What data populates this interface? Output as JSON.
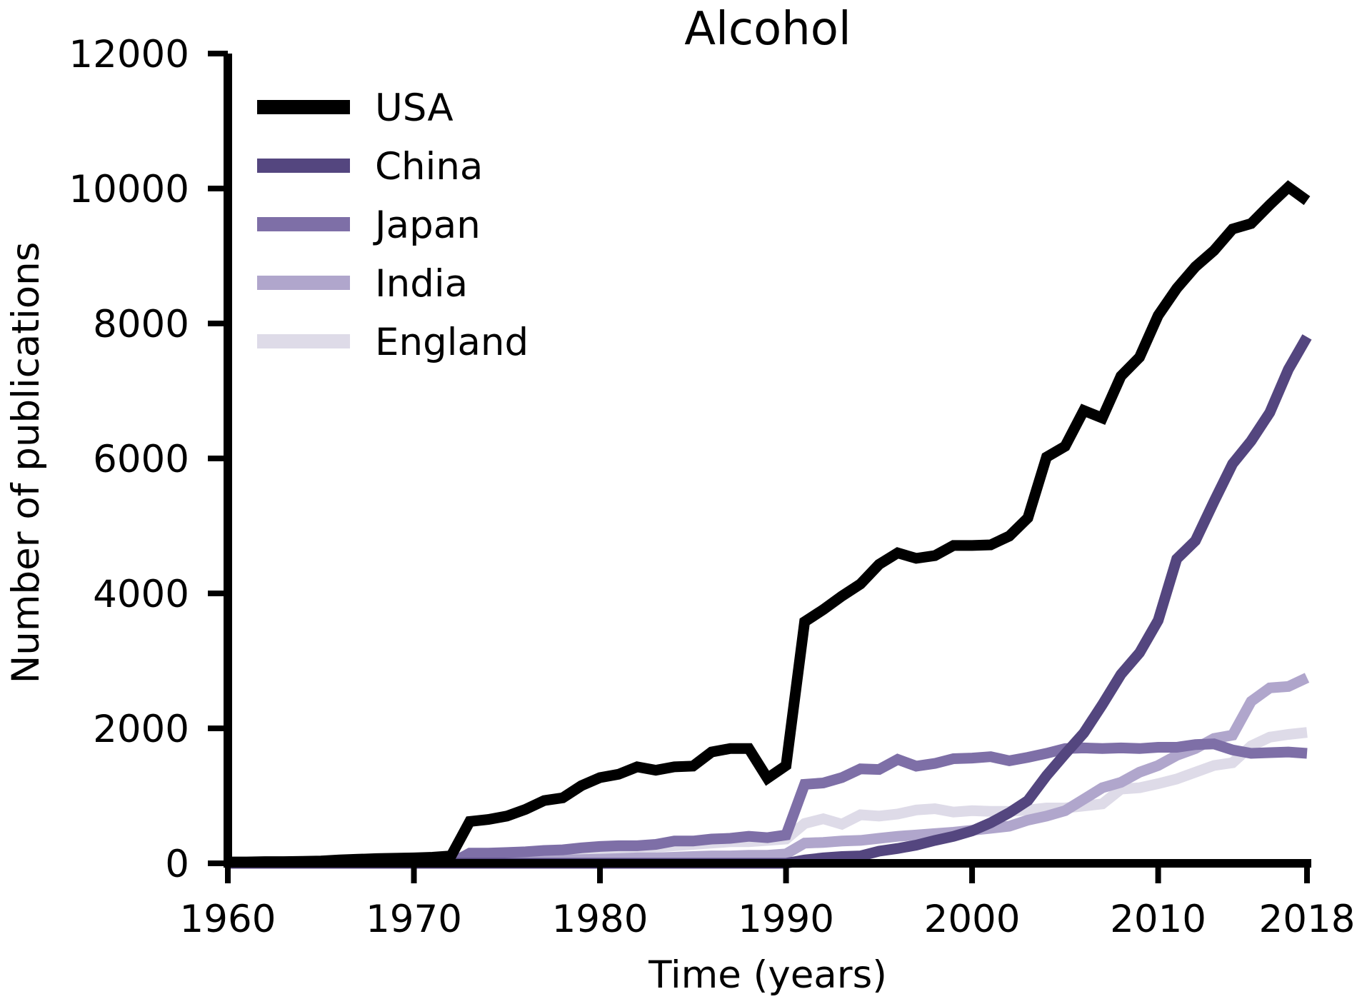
{
  "chart_data": {
    "type": "line",
    "title": "Alcohol",
    "xlabel": "Time (years)",
    "ylabel": "Number of publications",
    "xlim": [
      1960,
      2018
    ],
    "ylim": [
      0,
      12000
    ],
    "xticks": [
      1960,
      1970,
      1980,
      1990,
      2000,
      2010,
      2018
    ],
    "yticks": [
      0,
      2000,
      4000,
      6000,
      8000,
      10000,
      12000
    ],
    "xtick_labels": [
      "1960",
      "1970",
      "1980",
      "1990",
      "2000",
      "2010",
      "2018"
    ],
    "ytick_labels": [
      "0",
      "2000",
      "4000",
      "6000",
      "8000",
      "10000",
      "12000"
    ],
    "grid": false,
    "legend_position": "top-left",
    "x": [
      1960,
      1961,
      1962,
      1963,
      1964,
      1965,
      1966,
      1967,
      1968,
      1969,
      1970,
      1971,
      1972,
      1973,
      1974,
      1975,
      1976,
      1977,
      1978,
      1979,
      1980,
      1981,
      1982,
      1983,
      1984,
      1985,
      1986,
      1987,
      1988,
      1989,
      1990,
      1991,
      1992,
      1993,
      1994,
      1995,
      1996,
      1997,
      1998,
      1999,
      2000,
      2001,
      2002,
      2003,
      2004,
      2005,
      2006,
      2007,
      2008,
      2009,
      2010,
      2011,
      2012,
      2013,
      2014,
      2015,
      2016,
      2017,
      2018
    ],
    "series": [
      {
        "name": "USA",
        "color": "#000000",
        "values": [
          20,
          20,
          25,
          25,
          30,
          35,
          50,
          60,
          70,
          75,
          80,
          90,
          110,
          620,
          650,
          700,
          800,
          930,
          970,
          1150,
          1270,
          1320,
          1430,
          1380,
          1430,
          1440,
          1650,
          1700,
          1700,
          1260,
          1450,
          3580,
          3760,
          3960,
          4140,
          4430,
          4600,
          4520,
          4560,
          4710,
          4710,
          4720,
          4850,
          5120,
          6020,
          6180,
          6710,
          6600,
          7220,
          7500,
          8120,
          8520,
          8840,
          9080,
          9400,
          9480,
          9760,
          10020,
          9820
        ]
      },
      {
        "name": "China",
        "color": "#54467f",
        "values": [
          0,
          0,
          0,
          0,
          0,
          0,
          0,
          0,
          0,
          0,
          0,
          0,
          0,
          0,
          0,
          0,
          0,
          0,
          0,
          0,
          0,
          0,
          0,
          0,
          0,
          0,
          0,
          0,
          0,
          0,
          0,
          50,
          80,
          100,
          110,
          180,
          220,
          270,
          340,
          400,
          480,
          600,
          750,
          930,
          1300,
          1620,
          1930,
          2350,
          2800,
          3120,
          3600,
          4510,
          4780,
          5360,
          5920,
          6260,
          6680,
          7320,
          7800
        ]
      },
      {
        "name": "Japan",
        "color": "#7e6fa7",
        "values": [
          0,
          0,
          0,
          0,
          0,
          0,
          0,
          0,
          0,
          0,
          0,
          0,
          0,
          150,
          150,
          160,
          170,
          190,
          200,
          230,
          250,
          260,
          260,
          280,
          330,
          330,
          360,
          370,
          400,
          380,
          420,
          1170,
          1190,
          1270,
          1400,
          1390,
          1540,
          1440,
          1480,
          1550,
          1560,
          1580,
          1520,
          1570,
          1630,
          1700,
          1710,
          1700,
          1710,
          1700,
          1720,
          1720,
          1760,
          1770,
          1680,
          1630,
          1640,
          1650,
          1630
        ]
      },
      {
        "name": "India",
        "color": "#b0a6cc",
        "values": [
          0,
          0,
          0,
          0,
          0,
          0,
          0,
          0,
          0,
          0,
          0,
          0,
          0,
          20,
          25,
          30,
          35,
          40,
          50,
          55,
          60,
          70,
          80,
          80,
          90,
          100,
          110,
          110,
          120,
          120,
          140,
          300,
          310,
          330,
          340,
          370,
          400,
          420,
          440,
          460,
          490,
          520,
          550,
          640,
          700,
          780,
          950,
          1120,
          1200,
          1350,
          1450,
          1600,
          1700,
          1850,
          1900,
          2400,
          2600,
          2620,
          2750
        ]
      },
      {
        "name": "England",
        "color": "#dedbe8",
        "values": [
          20,
          20,
          20,
          20,
          20,
          25,
          25,
          25,
          30,
          30,
          30,
          30,
          60,
          120,
          130,
          130,
          140,
          150,
          160,
          160,
          170,
          190,
          200,
          240,
          260,
          280,
          300,
          320,
          320,
          340,
          360,
          590,
          660,
          580,
          720,
          700,
          730,
          790,
          810,
          760,
          780,
          770,
          770,
          790,
          820,
          820,
          850,
          880,
          1100,
          1120,
          1180,
          1250,
          1350,
          1450,
          1490,
          1740,
          1870,
          1910,
          1940
        ]
      }
    ]
  }
}
